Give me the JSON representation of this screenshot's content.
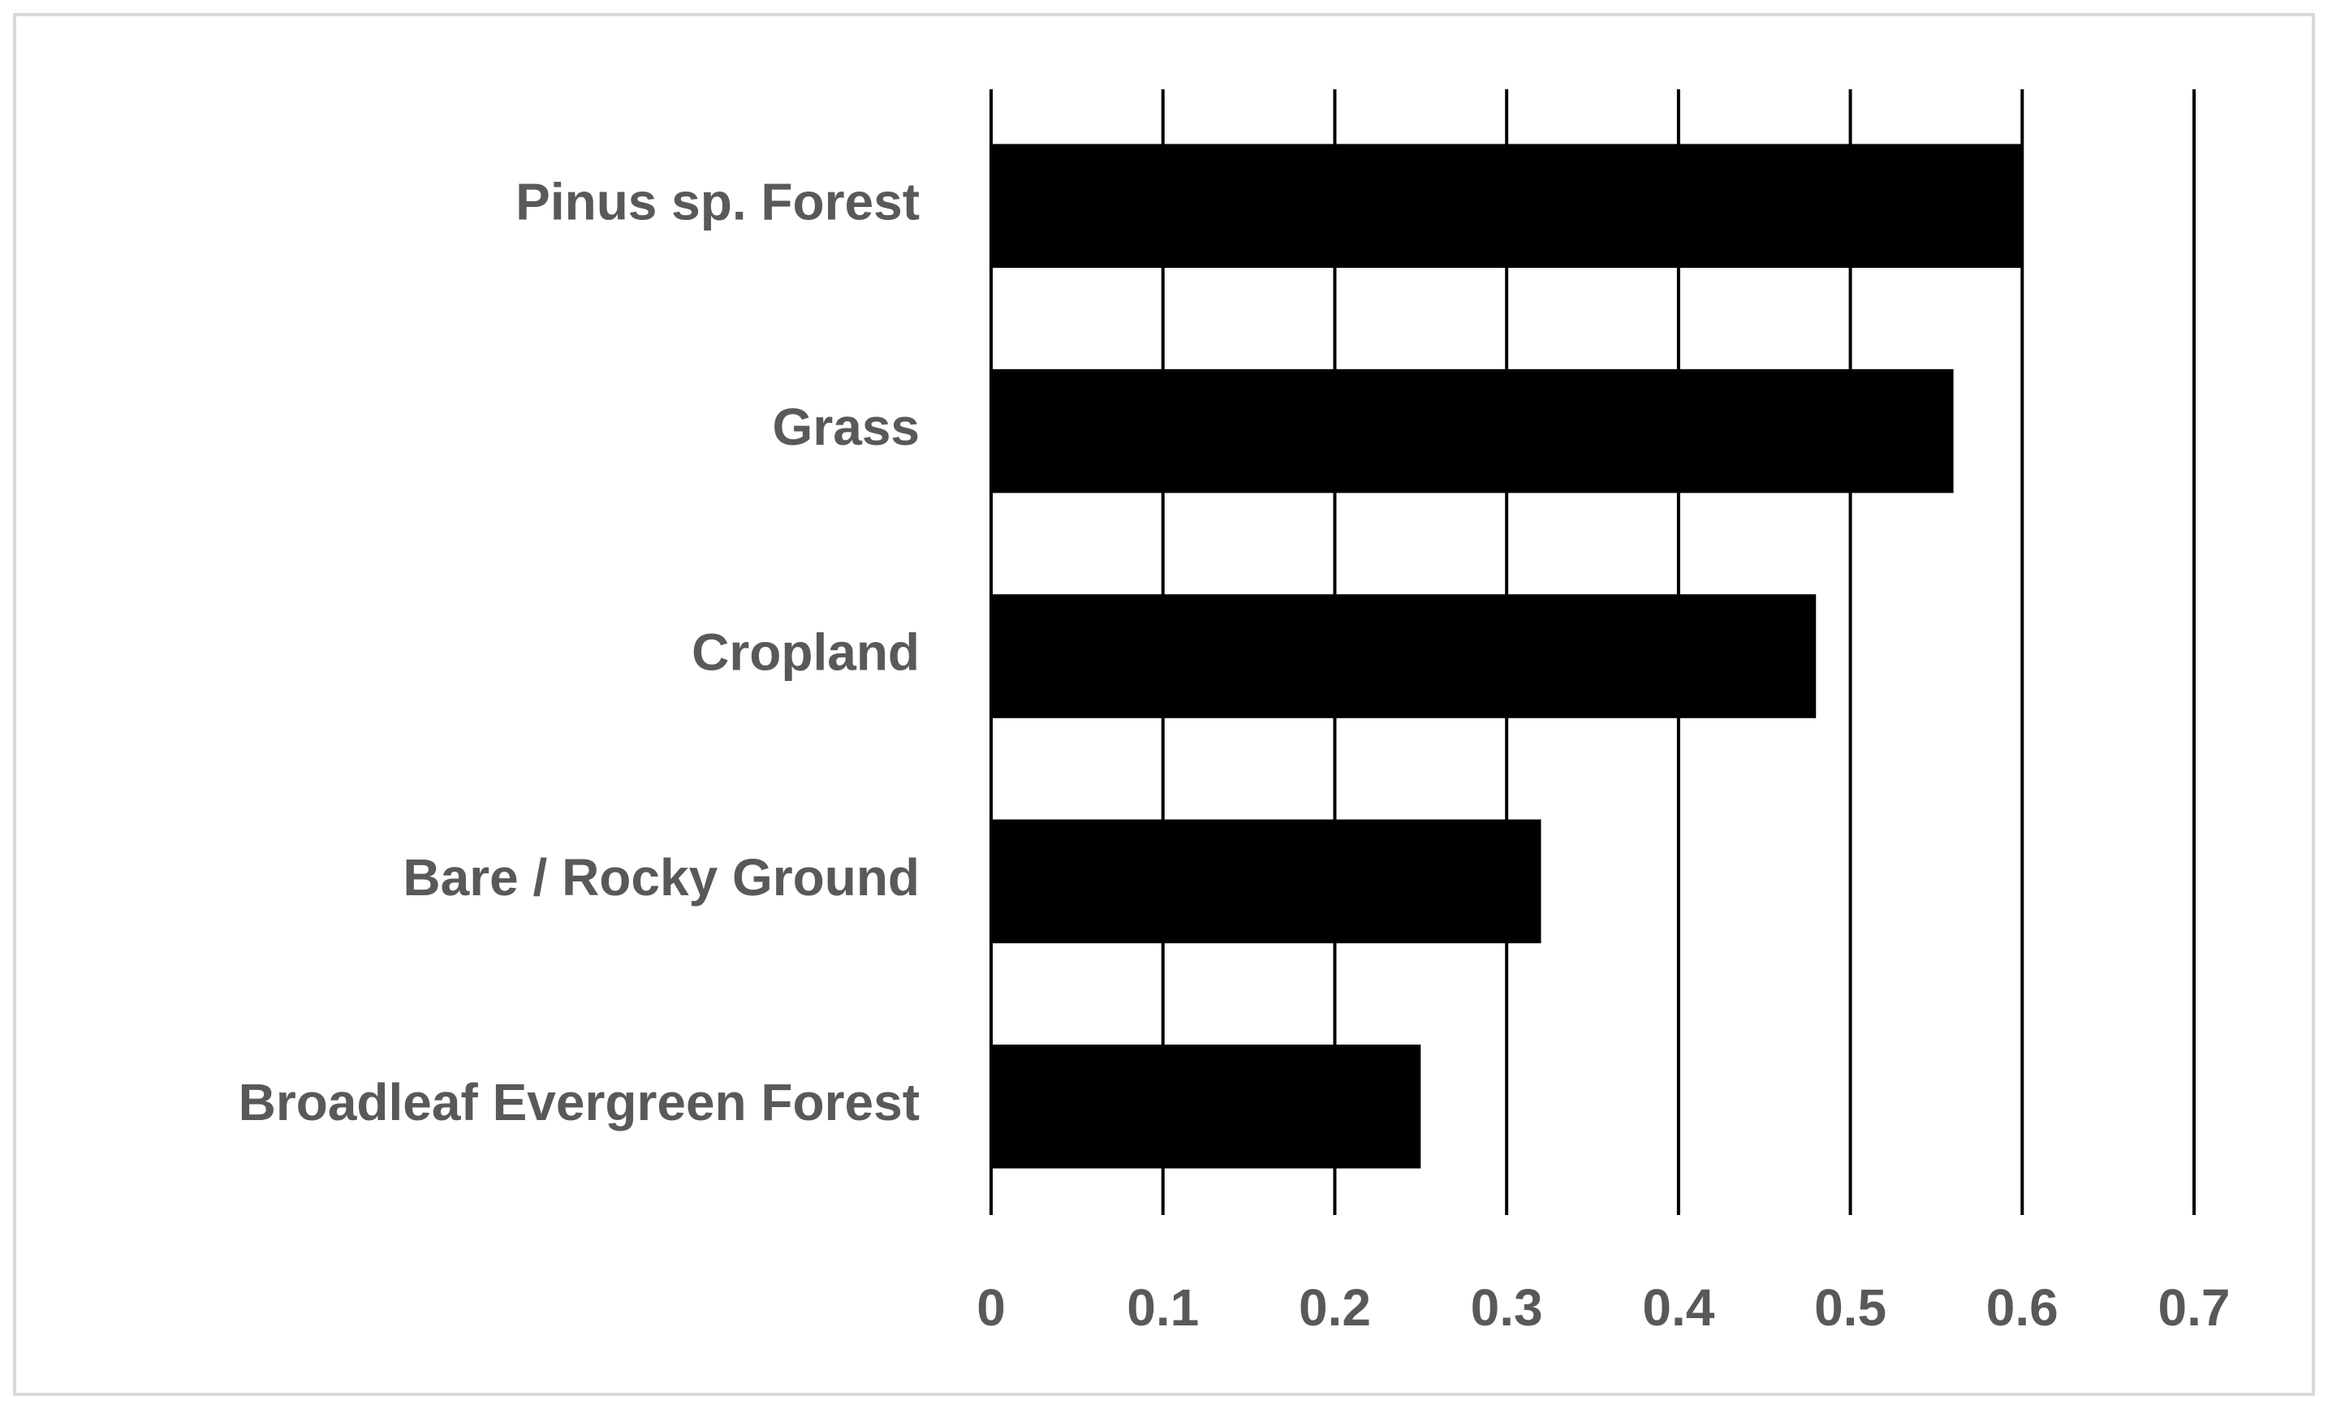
{
  "chart_data": {
    "type": "bar",
    "orientation": "horizontal",
    "categories": [
      "Pinus sp. Forest",
      "Grass",
      "Cropland",
      "Bare / Rocky Ground",
      "Broadleaf Evergreen Forest"
    ],
    "values": [
      0.6,
      0.56,
      0.48,
      0.32,
      0.25
    ],
    "color": "#000000",
    "xlim": [
      0,
      0.7
    ],
    "xticks": [
      0,
      0.1,
      0.2,
      0.3,
      0.4,
      0.5,
      0.6,
      0.7
    ],
    "grid": true
  }
}
